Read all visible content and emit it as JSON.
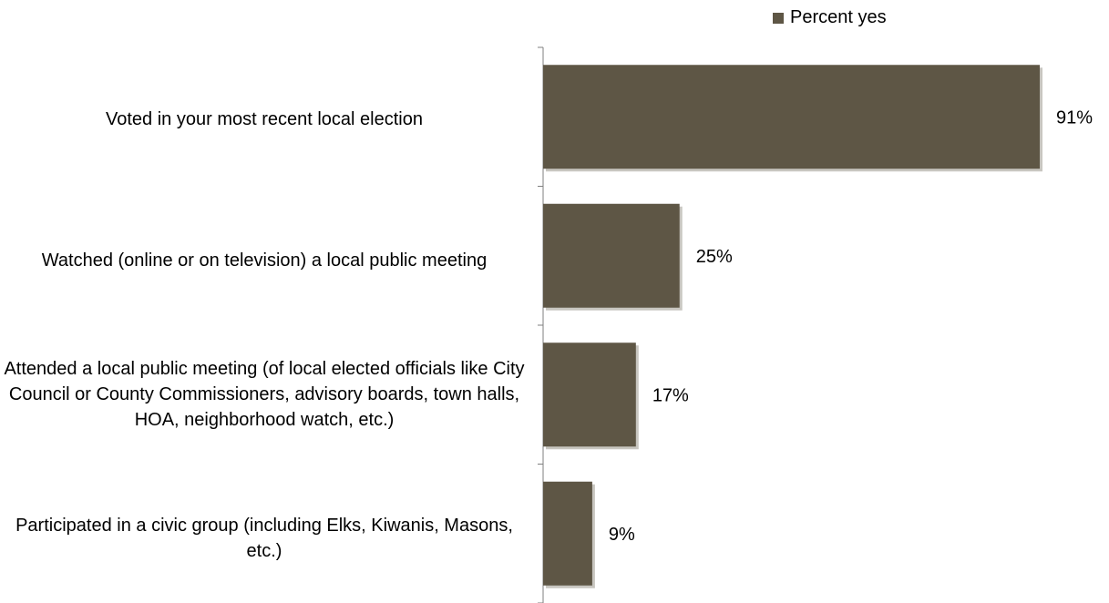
{
  "chart_data": {
    "type": "bar",
    "orientation": "horizontal",
    "categories": [
      "Voted in your most recent local election",
      "Watched (online or on television) a local public meeting",
      "Attended a local public meeting (of local elected officials like City Council or County Commissioners, advisory boards, town halls, HOA, neighborhood watch, etc.)",
      "Participated in a civic group (including Elks, Kiwanis, Masons, etc.)"
    ],
    "series": [
      {
        "name": "Percent yes",
        "values": [
          91,
          25,
          17,
          9
        ]
      }
    ],
    "data_labels": [
      "91%",
      "25%",
      "17%",
      "9%"
    ],
    "xlim": [
      0,
      100
    ],
    "legend": "top",
    "grid": false
  },
  "colors": {
    "bar": "#5e5645",
    "bar_shadow": "#c8c6c0",
    "axis": "#7f7f7f"
  }
}
